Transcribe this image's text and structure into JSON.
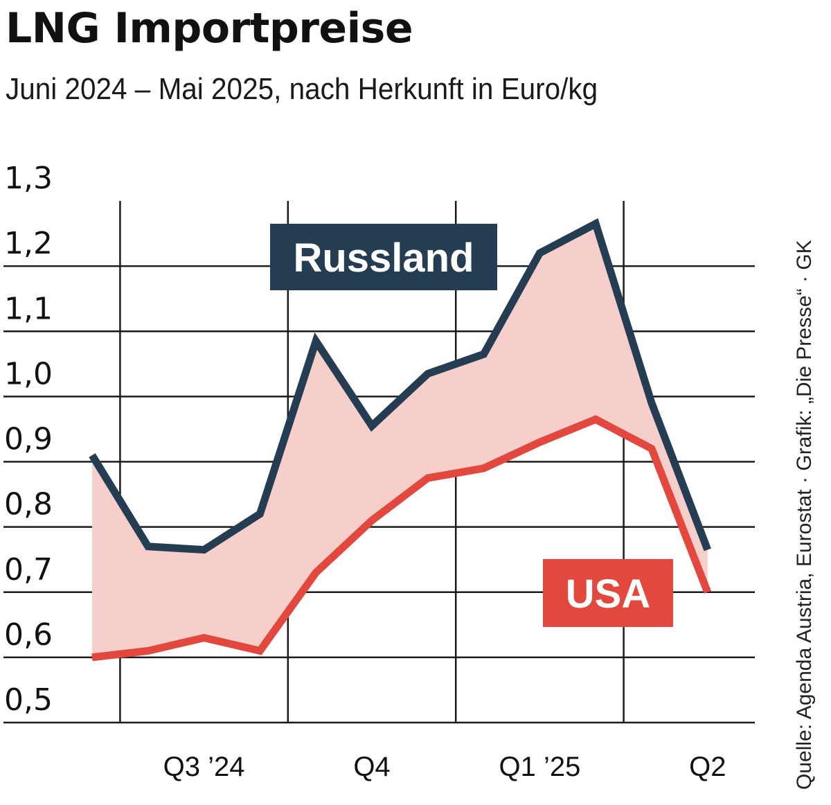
{
  "chart_data": {
    "type": "line",
    "title": "LNG Importpreise",
    "subtitle": "Juni 2024 – Mai 2025, nach Herkunft in Euro/kg",
    "x": [
      "2024-06",
      "2024-07",
      "2024-08",
      "2024-09",
      "2024-10",
      "2024-11",
      "2024-12",
      "2025-01",
      "2025-02",
      "2025-03",
      "2025-04",
      "2025-05"
    ],
    "xticks": [
      {
        "label": "Q3 ’24",
        "at": "2024-08"
      },
      {
        "label": "Q4",
        "at": "2024-11"
      },
      {
        "label": "Q1 ’25",
        "at": "2025-02"
      },
      {
        "label": "Q2",
        "at": "2025-05"
      }
    ],
    "quarter_boundaries": [
      "2024-06/2024-07",
      "2024-09/2024-10",
      "2024-12/2025-01",
      "2025-03/2025-04"
    ],
    "ylim": [
      0.5,
      1.3
    ],
    "yticks": [
      0.5,
      0.6,
      0.7,
      0.8,
      0.9,
      1.0,
      1.1,
      1.2,
      1.3
    ],
    "ytick_labels": [
      "0,5",
      "0,6",
      "0,7",
      "0,8",
      "0,9",
      "1,0",
      "1,1",
      "1,2",
      "1,3"
    ],
    "grid": true,
    "fill_between": true,
    "series": [
      {
        "name": "Russland",
        "color": "#253d52",
        "values": [
          0.91,
          0.77,
          0.765,
          0.82,
          1.085,
          0.955,
          1.035,
          1.065,
          1.22,
          1.265,
          0.99,
          0.765
        ]
      },
      {
        "name": "USA",
        "color": "#e2483d",
        "values": [
          0.6,
          0.61,
          0.63,
          0.61,
          0.73,
          0.81,
          0.875,
          0.89,
          0.93,
          0.965,
          0.92,
          0.7
        ]
      }
    ],
    "fill_color": "#f6cfca",
    "source": "Quelle: Agenda Austria, Eurostat · Grafik: „Die Presse“ · GK"
  }
}
